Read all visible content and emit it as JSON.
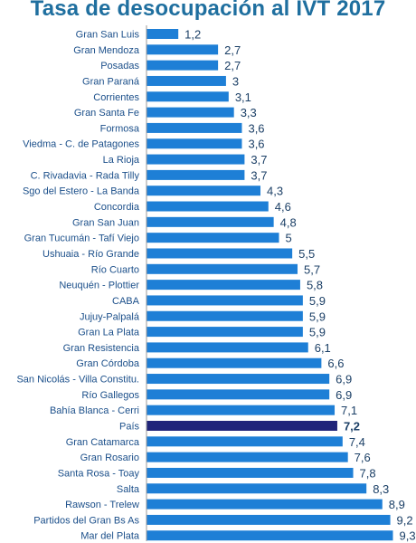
{
  "colors": {
    "title": "#1f6f9f",
    "bar": "#1e7fd6",
    "highlight_bar": "#20247a",
    "category_text": "#1b4f8a",
    "value_text": "#1b3f66",
    "axis": "#9a9a9a"
  },
  "chart_data": {
    "type": "bar",
    "orientation": "horizontal",
    "title": "Tasa de desocupación al IVT 2017",
    "xlabel": "",
    "ylabel": "",
    "xlim": [
      0,
      9.3
    ],
    "grid": false,
    "highlight_category": "País",
    "categories": [
      "Gran San Luis",
      "Gran Mendoza",
      "Posadas",
      "Gran Paraná",
      "Corrientes",
      "Gran Santa Fe",
      "Formosa",
      "Viedma - C. de Patagones",
      "La Rioja",
      "C. Rivadavia - Rada Tilly",
      "Sgo del Estero - La Banda",
      "Concordia",
      "Gran San Juan",
      "Gran Tucumán - Tafí Viejo",
      "Ushuaia - Río Grande",
      "Río Cuarto",
      "Neuquén - Plottier",
      "CABA",
      "Jujuy-Palpalá",
      "Gran La Plata",
      "Gran Resistencia",
      "Gran Córdoba",
      "San Nicolás - Villa Constitu.",
      "Río Gallegos",
      "Bahía Blanca - Cerri",
      "País",
      "Gran Catamarca",
      "Gran Rosario",
      "Santa Rosa - Toay",
      "Salta",
      "Rawson - Trelew",
      "Partidos del Gran Bs As",
      "Mar del Plata"
    ],
    "values": [
      1.2,
      2.7,
      2.7,
      3,
      3.1,
      3.3,
      3.6,
      3.6,
      3.7,
      3.7,
      4.3,
      4.6,
      4.8,
      5,
      5.5,
      5.7,
      5.8,
      5.9,
      5.9,
      5.9,
      6.1,
      6.6,
      6.9,
      6.9,
      7.1,
      7.2,
      7.4,
      7.6,
      7.8,
      8.3,
      8.9,
      9.2,
      9.3
    ],
    "value_labels": [
      "1,2",
      "2,7",
      "2,7",
      "3",
      "3,1",
      "3,3",
      "3,6",
      "3,6",
      "3,7",
      "3,7",
      "4,3",
      "4,6",
      "4,8",
      "5",
      "5,5",
      "5,7",
      "5,8",
      "5,9",
      "5,9",
      "5,9",
      "6,1",
      "6,6",
      "6,9",
      "6,9",
      "7,1",
      "7,2",
      "7,4",
      "7,6",
      "7,8",
      "8,3",
      "8,9",
      "9,2",
      "9,3"
    ]
  }
}
